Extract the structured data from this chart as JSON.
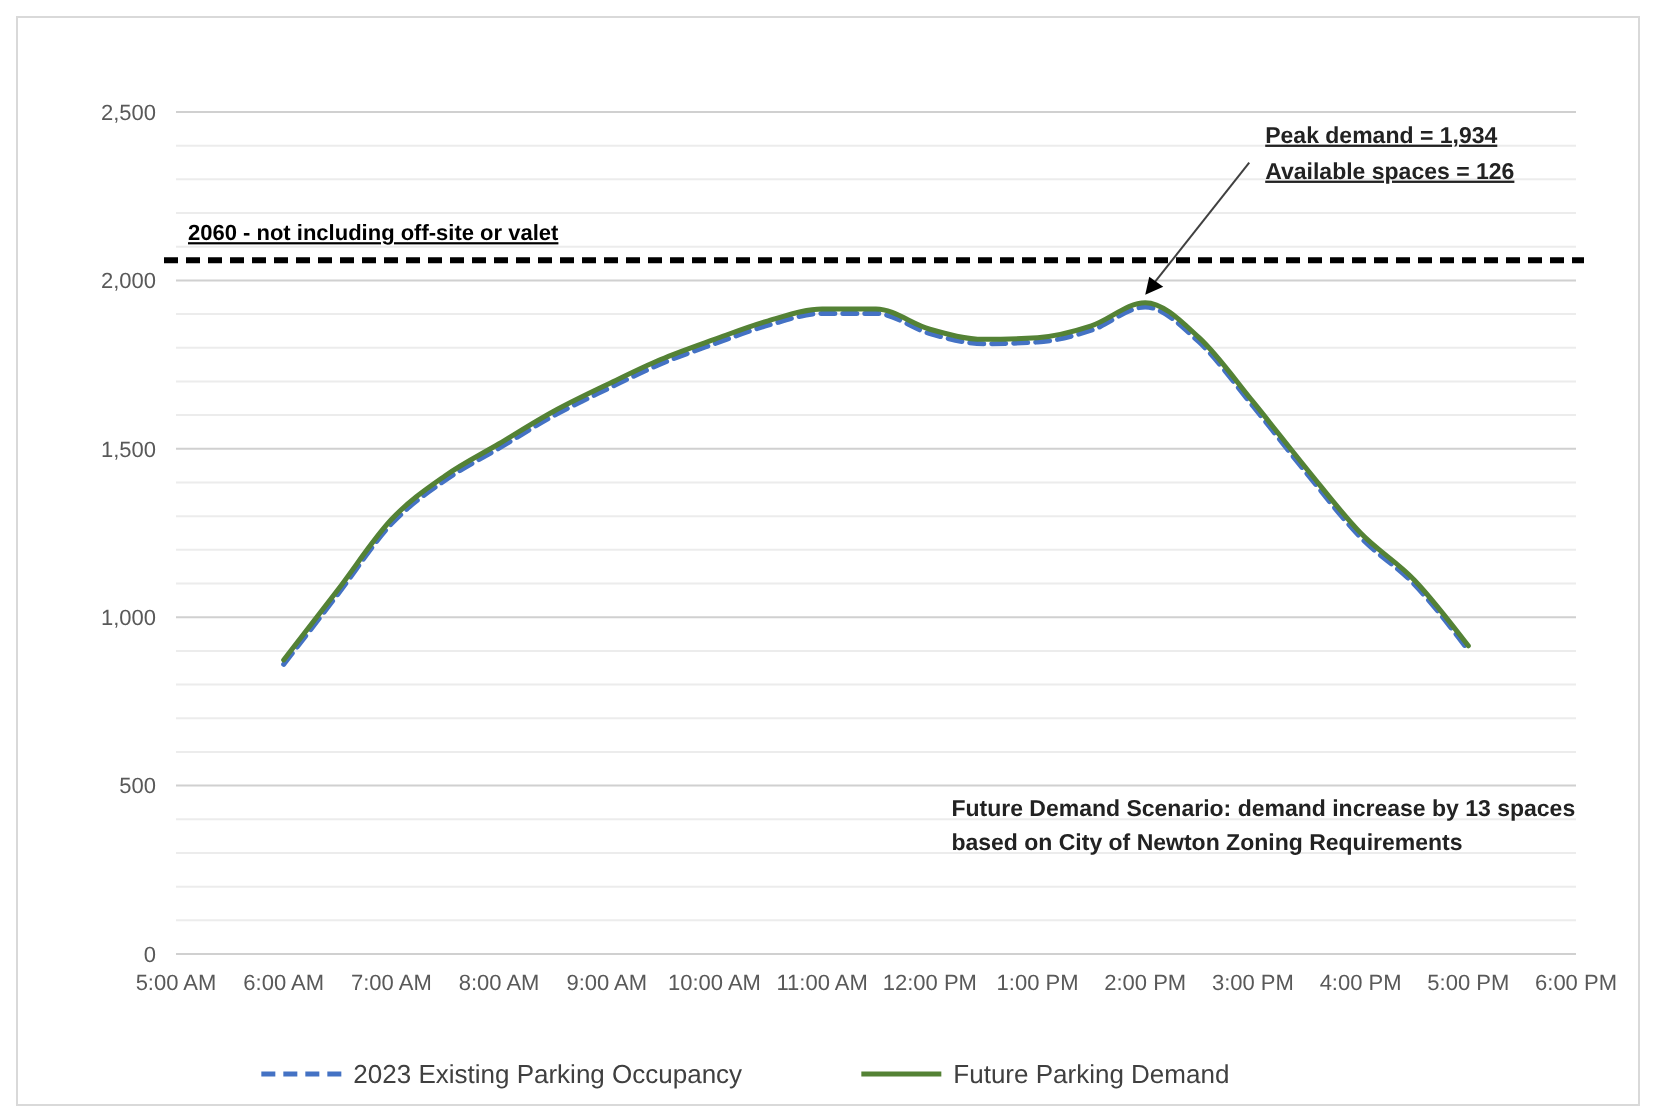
{
  "chart_data": {
    "type": "line",
    "x": [
      6,
      6.5,
      7,
      7.5,
      8,
      8.5,
      9,
      9.5,
      10,
      10.5,
      11,
      11.5,
      12,
      12.5,
      13,
      13.5,
      14,
      14.5,
      15,
      15.5,
      16,
      16.5,
      17
    ],
    "series": [
      {
        "name": "2023 Existing Parking Occupancy",
        "color": "#4472c4",
        "line_style": "dashed",
        "values": [
          860,
          1067,
          1277,
          1407,
          1502,
          1597,
          1677,
          1752,
          1812,
          1867,
          1902,
          1902,
          1842,
          1812,
          1817,
          1852,
          1921,
          1817,
          1627,
          1427,
          1237,
          1097,
          902
        ]
      },
      {
        "name": "Future Parking Demand",
        "color": "#548235",
        "line_style": "solid",
        "values": [
          873,
          1080,
          1290,
          1420,
          1515,
          1610,
          1690,
          1765,
          1825,
          1880,
          1915,
          1915,
          1855,
          1825,
          1830,
          1865,
          1934,
          1830,
          1640,
          1440,
          1250,
          1110,
          915
        ]
      }
    ],
    "xlim": [
      5,
      18
    ],
    "xticks": [
      {
        "value": 5,
        "label": "5:00 AM"
      },
      {
        "value": 6,
        "label": "6:00 AM"
      },
      {
        "value": 7,
        "label": "7:00 AM"
      },
      {
        "value": 8,
        "label": "8:00 AM"
      },
      {
        "value": 9,
        "label": "9:00 AM"
      },
      {
        "value": 10,
        "label": "10:00 AM"
      },
      {
        "value": 11,
        "label": "11:00 AM"
      },
      {
        "value": 12,
        "label": "12:00 PM"
      },
      {
        "value": 13,
        "label": "1:00 PM"
      },
      {
        "value": 14,
        "label": "2:00 PM"
      },
      {
        "value": 15,
        "label": "3:00 PM"
      },
      {
        "value": 16,
        "label": "4:00 PM"
      },
      {
        "value": 17,
        "label": "5:00 PM"
      },
      {
        "value": 18,
        "label": "6:00 PM"
      }
    ],
    "ylim": [
      0,
      2500
    ],
    "yticks": [
      {
        "value": 0,
        "label": "0"
      },
      {
        "value": 500,
        "label": "500"
      },
      {
        "value": 1000,
        "label": "1,000"
      },
      {
        "value": 1500,
        "label": "1,500"
      },
      {
        "value": 2000,
        "label": "2,000"
      },
      {
        "value": 2500,
        "label": "2,500"
      }
    ],
    "grid": "y",
    "legend": "bottom",
    "marker": "none",
    "ref_lines": [
      {
        "axis": "y",
        "value": 2060,
        "label": "2060 - not including off-site or valet",
        "color": "#000000",
        "line_style": "dashed"
      }
    ],
    "annotations": [
      {
        "text": "Peak demand = 1,934\nAvailable spaces = 126",
        "x": 14,
        "y": 1934
      },
      "Future Demand Scenario: demand increase by 13 spaces\nbased on City of Newton Zoning Requirements"
    ]
  }
}
